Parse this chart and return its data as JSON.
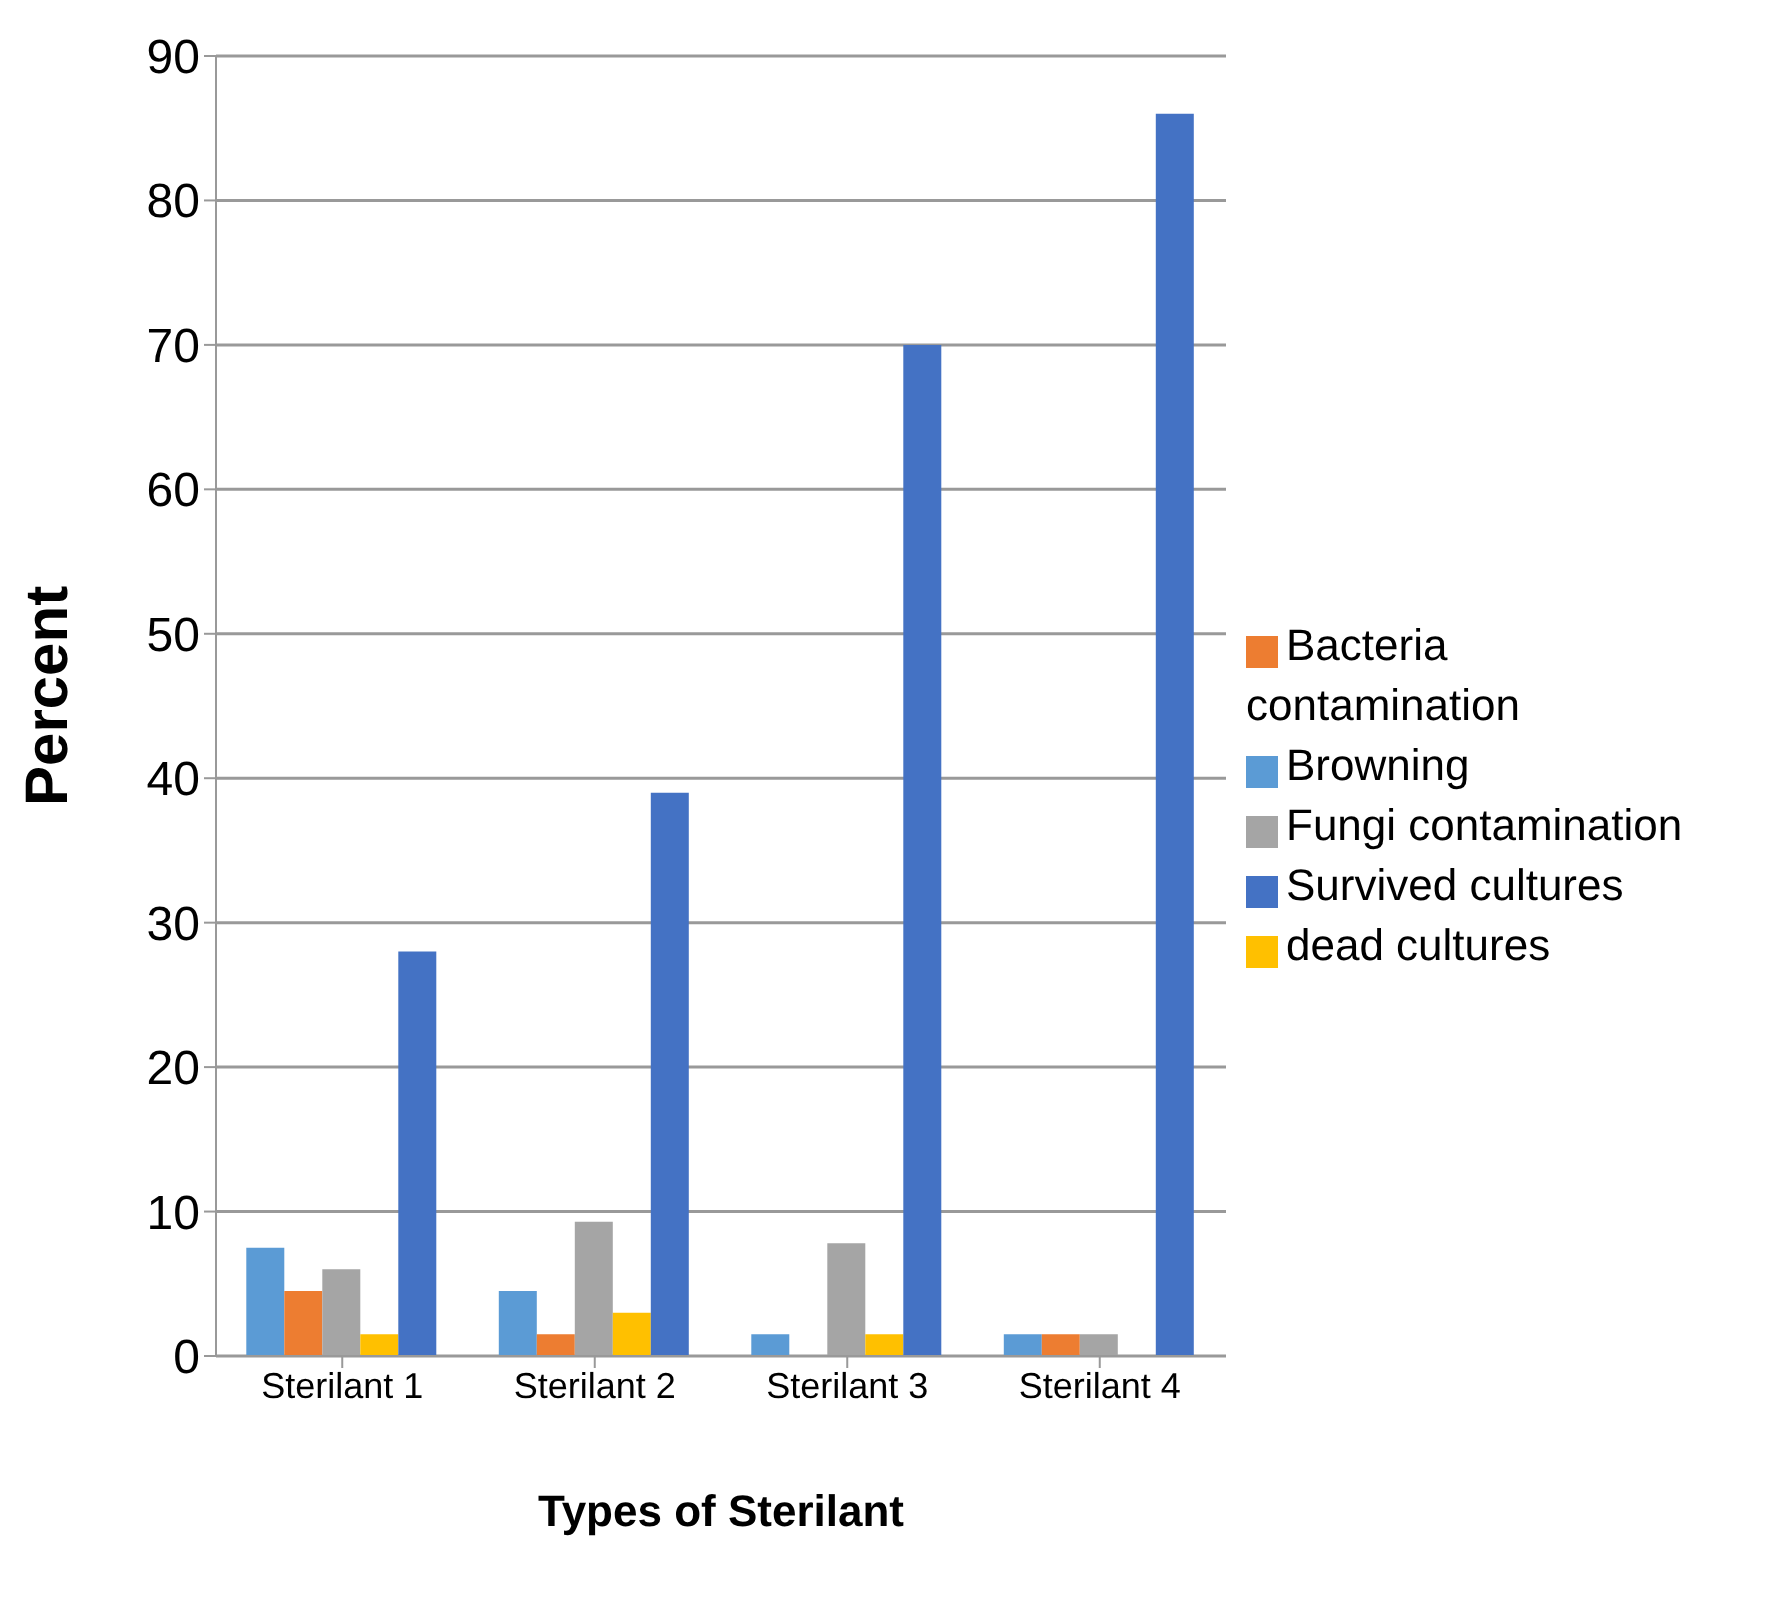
{
  "chart_data": {
    "type": "bar",
    "xlabel": "Types of Sterilant",
    "ylabel": "Percent",
    "categories": [
      "Sterilant 1",
      "Sterilant 2",
      "Sterilant 3",
      "Sterilant 4"
    ],
    "series": [
      {
        "name": "Browning",
        "color": "#5b9bd5",
        "values": [
          7.5,
          4.5,
          1.5,
          1.5
        ]
      },
      {
        "name": "Bacteria contamination",
        "color": "#ed7d31",
        "values": [
          4.5,
          1.5,
          0,
          1.5
        ]
      },
      {
        "name": "Fungi contamination",
        "color": "#a5a5a5",
        "values": [
          6,
          9.3,
          7.8,
          1.5
        ]
      },
      {
        "name": "dead cultures",
        "color": "#ffc000",
        "values": [
          1.5,
          3,
          1.5,
          0
        ]
      },
      {
        "name": "Survived cultures",
        "color": "#4472c4",
        "values": [
          28,
          39,
          70,
          86
        ]
      }
    ],
    "ylim": [
      0,
      90
    ],
    "yticks": [
      0,
      10,
      20,
      30,
      40,
      50,
      60,
      70,
      80,
      90
    ],
    "grid": "y",
    "legend": "right"
  }
}
